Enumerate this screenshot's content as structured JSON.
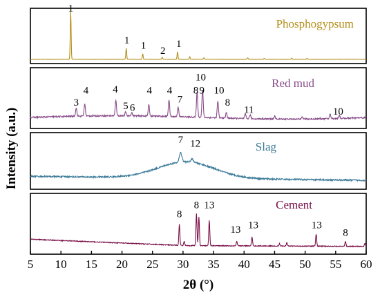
{
  "chart_data": {
    "type": "line",
    "xlabel": "2θ (°)",
    "ylabel": "Intensity (a.u.)",
    "xlim": [
      5,
      60
    ],
    "xticks": [
      "5",
      "10",
      "15",
      "20",
      "25",
      "30",
      "35",
      "40",
      "45",
      "50",
      "55",
      "60"
    ],
    "grid": false,
    "series": [
      {
        "name": "Phosphogypsum",
        "color": "#b38f19",
        "baseline": 0.03,
        "noise": 0.003,
        "hump": null,
        "peaks": [
          {
            "x": 11.6,
            "h": 0.97,
            "w": 0.1
          },
          {
            "x": 20.7,
            "h": 0.22,
            "w": 0.1
          },
          {
            "x": 23.4,
            "h": 0.11,
            "w": 0.1
          },
          {
            "x": 26.6,
            "h": 0.04,
            "w": 0.1
          },
          {
            "x": 29.1,
            "h": 0.15,
            "w": 0.1
          },
          {
            "x": 31.1,
            "h": 0.05,
            "w": 0.1
          },
          {
            "x": 33.4,
            "h": 0.03,
            "w": 0.1
          },
          {
            "x": 40.6,
            "h": 0.03,
            "w": 0.1
          },
          {
            "x": 43.3,
            "h": 0.02,
            "w": 0.1
          },
          {
            "x": 47.8,
            "h": 0.025,
            "w": 0.1
          },
          {
            "x": 50.3,
            "h": 0.02,
            "w": 0.1
          }
        ],
        "labels": [
          {
            "text": "1",
            "x": 11.6,
            "y": 0.99
          },
          {
            "text": "1",
            "x": 20.8,
            "y": 0.35
          },
          {
            "text": "1",
            "x": 23.5,
            "y": 0.24
          },
          {
            "text": "2",
            "x": 26.7,
            "y": 0.14
          },
          {
            "text": "1",
            "x": 29.3,
            "y": 0.28
          }
        ]
      },
      {
        "name": "Red mud",
        "color": "#884c8a",
        "baseline": 0.15,
        "noise": 0.025,
        "hump": null,
        "peaks": [
          {
            "x": 12.5,
            "h": 0.15,
            "w": 0.15
          },
          {
            "x": 13.9,
            "h": 0.22,
            "w": 0.15
          },
          {
            "x": 19.0,
            "h": 0.28,
            "w": 0.15
          },
          {
            "x": 20.6,
            "h": 0.07,
            "w": 0.15
          },
          {
            "x": 21.6,
            "h": 0.06,
            "w": 0.15
          },
          {
            "x": 24.4,
            "h": 0.2,
            "w": 0.15
          },
          {
            "x": 27.7,
            "h": 0.3,
            "w": 0.15
          },
          {
            "x": 29.2,
            "h": 0.18,
            "w": 0.15
          },
          {
            "x": 32.3,
            "h": 0.45,
            "w": 0.15
          },
          {
            "x": 33.2,
            "h": 0.5,
            "w": 0.15
          },
          {
            "x": 35.7,
            "h": 0.3,
            "w": 0.15
          },
          {
            "x": 37.1,
            "h": 0.1,
            "w": 0.15
          },
          {
            "x": 40.2,
            "h": 0.08,
            "w": 0.15
          },
          {
            "x": 41.0,
            "h": 0.07,
            "w": 0.15
          },
          {
            "x": 45.0,
            "h": 0.05,
            "w": 0.15
          },
          {
            "x": 49.5,
            "h": 0.05,
            "w": 0.15
          },
          {
            "x": 54.1,
            "h": 0.08,
            "w": 0.15
          },
          {
            "x": 55.6,
            "h": 0.06,
            "w": 0.15
          }
        ],
        "labels": [
          {
            "text": "3",
            "x": 12.5,
            "y": 0.36
          },
          {
            "text": "4",
            "x": 14.1,
            "y": 0.58
          },
          {
            "text": "4",
            "x": 18.9,
            "y": 0.6
          },
          {
            "text": "5",
            "x": 20.6,
            "y": 0.3
          },
          {
            "text": "6",
            "x": 21.7,
            "y": 0.27
          },
          {
            "text": "4",
            "x": 24.5,
            "y": 0.58
          },
          {
            "text": "4",
            "x": 27.8,
            "y": 0.58
          },
          {
            "text": "7",
            "x": 29.5,
            "y": 0.42
          },
          {
            "text": "8",
            "x": 32.1,
            "y": 0.58
          },
          {
            "text": "10",
            "x": 32.9,
            "y": 0.82
          },
          {
            "text": "9",
            "x": 33.1,
            "y": 0.58
          },
          {
            "text": "10",
            "x": 35.9,
            "y": 0.58
          },
          {
            "text": "8",
            "x": 37.3,
            "y": 0.36
          },
          {
            "text": "11",
            "x": 40.8,
            "y": 0.23
          },
          {
            "text": "10",
            "x": 55.4,
            "y": 0.2
          }
        ]
      },
      {
        "name": "Slag",
        "color": "#3c7b99",
        "baseline": 0.2,
        "noise": 0.03,
        "hump": {
          "x": 30.5,
          "h": 0.32,
          "w": 6.5
        },
        "peaks": [
          {
            "x": 29.6,
            "h": 0.18,
            "w": 0.3
          },
          {
            "x": 31.5,
            "h": 0.06,
            "w": 0.3
          }
        ],
        "labels": [
          {
            "text": "7",
            "x": 29.6,
            "y": 0.85
          },
          {
            "text": "12",
            "x": 32.0,
            "y": 0.78
          }
        ]
      },
      {
        "name": "Cement",
        "color": "#7a1048",
        "baseline": 0.12,
        "noise": 0.015,
        "hump": null,
        "peaks": [
          {
            "x": 29.4,
            "h": 0.38,
            "w": 0.12
          },
          {
            "x": 30.2,
            "h": 0.08,
            "w": 0.12
          },
          {
            "x": 32.2,
            "h": 0.58,
            "w": 0.12
          },
          {
            "x": 32.6,
            "h": 0.52,
            "w": 0.12
          },
          {
            "x": 34.3,
            "h": 0.45,
            "w": 0.12
          },
          {
            "x": 38.8,
            "h": 0.08,
            "w": 0.12
          },
          {
            "x": 41.3,
            "h": 0.16,
            "w": 0.12
          },
          {
            "x": 45.8,
            "h": 0.04,
            "w": 0.12
          },
          {
            "x": 47.0,
            "h": 0.06,
            "w": 0.12
          },
          {
            "x": 51.8,
            "h": 0.22,
            "w": 0.12
          },
          {
            "x": 56.6,
            "h": 0.09,
            "w": 0.12
          },
          {
            "x": 59.8,
            "h": 0.06,
            "w": 0.12
          }
        ],
        "labels": [
          {
            "text": "8",
            "x": 29.4,
            "y": 0.62
          },
          {
            "text": "8",
            "x": 32.2,
            "y": 0.78
          },
          {
            "text": "13",
            "x": 34.3,
            "y": 0.78
          },
          {
            "text": "13",
            "x": 38.6,
            "y": 0.34
          },
          {
            "text": "13",
            "x": 41.5,
            "y": 0.42
          },
          {
            "text": "13",
            "x": 51.9,
            "y": 0.42
          },
          {
            "text": "8",
            "x": 56.6,
            "y": 0.28
          }
        ]
      }
    ]
  }
}
